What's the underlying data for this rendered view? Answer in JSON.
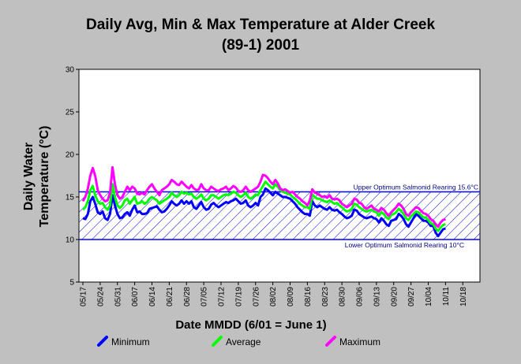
{
  "chart_data": {
    "type": "line",
    "title_line1": "Daily Avg, Min & Max Temperature at Alder Creek",
    "title_line2": "(89-1) 2001",
    "xlabel": "Date MMDD (6/01 = June 1)",
    "ylabel_line1": "Daily Water",
    "ylabel_line2": "Temperature (°C)",
    "ylim": [
      5,
      30
    ],
    "y_ticks": [
      "5",
      "10",
      "15",
      "20",
      "25",
      "30"
    ],
    "x_ticks": [
      "05/17",
      "05/24",
      "05/31",
      "06/07",
      "06/14",
      "06/21",
      "06/28",
      "07/05",
      "07/12",
      "07/19",
      "07/26",
      "08/02",
      "08/09",
      "08/16",
      "08/23",
      "08/30",
      "09/06",
      "09/13",
      "09/20",
      "09/27",
      "10/04",
      "10/11",
      "10/18"
    ],
    "band": {
      "lower": 10,
      "upper": 15.6,
      "upper_label": "Upper Optimum Salmonid Rearing 15.6°C",
      "lower_label": "Lower Optimum Salmonid Rearing 10°C"
    },
    "legend_placement": "bottom",
    "series": [
      {
        "name": "Minimum",
        "color": "#0000ff",
        "values": [
          12.5,
          12.4,
          13.0,
          14.5,
          15.0,
          14.2,
          13.2,
          13.0,
          13.3,
          12.5,
          12.3,
          13.0,
          15.2,
          14.0,
          13.0,
          12.5,
          12.6,
          13.0,
          13.2,
          12.8,
          13.5,
          14.0,
          13.2,
          13.3,
          13.0,
          13.0,
          13.1,
          13.6,
          13.7,
          13.8,
          13.9,
          13.5,
          13.2,
          13.3,
          13.6,
          14.0,
          14.5,
          14.2,
          14.0,
          14.2,
          14.6,
          14.2,
          14.5,
          14.2,
          14.5,
          13.8,
          13.6,
          14.0,
          14.4,
          13.8,
          13.5,
          13.6,
          14.1,
          14.3,
          14.0,
          13.8,
          14.0,
          14.2,
          14.4,
          14.3,
          14.5,
          14.6,
          14.8,
          14.5,
          14.2,
          14.3,
          14.6,
          14.0,
          13.8,
          14.0,
          14.3,
          14.0,
          15.0,
          15.3,
          16.0,
          15.8,
          15.5,
          15.2,
          15.6,
          15.4,
          15.2,
          15.0,
          15.0,
          14.9,
          14.8,
          14.5,
          14.2,
          13.8,
          13.5,
          13.2,
          13.0,
          13.0,
          12.8,
          14.5,
          14.0,
          13.8,
          14.0,
          13.8,
          13.6,
          13.5,
          13.8,
          13.5,
          13.4,
          13.5,
          13.2,
          13.0,
          12.7,
          12.5,
          12.6,
          12.8,
          13.5,
          13.4,
          13.0,
          12.8,
          12.6,
          12.5,
          12.6,
          12.7,
          12.5,
          12.4,
          12.0,
          12.5,
          12.2,
          11.8,
          11.6,
          12.2,
          12.3,
          12.4,
          13.0,
          12.8,
          12.4,
          11.8,
          11.5,
          12.0,
          12.5,
          13.0,
          12.8,
          12.5,
          12.2,
          12.2,
          12.0,
          11.6,
          11.6,
          10.8,
          10.4,
          10.8,
          11.2,
          11.3
        ]
      },
      {
        "name": "Average",
        "color": "#00ff00",
        "values": [
          13.5,
          13.8,
          14.5,
          15.8,
          16.3,
          15.2,
          14.5,
          14.2,
          14.3,
          13.8,
          13.5,
          14.0,
          16.5,
          15.0,
          14.0,
          13.7,
          14.0,
          14.6,
          14.8,
          14.2,
          14.6,
          15.0,
          14.2,
          14.3,
          14.5,
          14.2,
          14.4,
          14.8,
          15.0,
          14.8,
          14.6,
          14.2,
          14.4,
          14.6,
          14.8,
          15.0,
          15.5,
          15.2,
          15.0,
          15.2,
          15.6,
          15.4,
          15.5,
          15.3,
          15.4,
          15.0,
          14.8,
          15.0,
          15.3,
          14.8,
          14.6,
          14.8,
          15.2,
          15.2,
          15.0,
          14.8,
          15.0,
          15.2,
          15.3,
          15.2,
          15.4,
          15.6,
          15.5,
          15.2,
          15.0,
          15.2,
          15.5,
          15.0,
          14.8,
          15.0,
          15.3,
          15.2,
          15.8,
          16.3,
          16.8,
          16.5,
          16.2,
          16.0,
          16.5,
          16.2,
          15.8,
          15.6,
          15.5,
          15.4,
          15.3,
          15.0,
          14.8,
          14.5,
          14.2,
          14.0,
          13.8,
          13.8,
          13.6,
          15.3,
          15.0,
          14.8,
          14.8,
          14.6,
          14.5,
          14.4,
          14.6,
          14.4,
          14.2,
          14.3,
          14.0,
          13.8,
          13.5,
          13.3,
          13.4,
          13.6,
          14.2,
          14.1,
          13.8,
          13.6,
          13.4,
          13.3,
          13.4,
          13.5,
          13.3,
          13.2,
          12.8,
          13.2,
          13.0,
          12.6,
          12.4,
          12.9,
          13.0,
          13.2,
          13.6,
          13.4,
          13.0,
          12.5,
          12.3,
          12.7,
          13.0,
          13.3,
          13.2,
          12.9,
          12.6,
          12.6,
          12.3,
          11.9,
          11.8,
          11.3,
          11.0,
          11.4,
          11.7,
          11.8
        ]
      },
      {
        "name": "Maximum",
        "color": "#ff00ff",
        "values": [
          14.5,
          15.0,
          16.0,
          17.5,
          18.4,
          17.5,
          15.8,
          15.2,
          14.8,
          14.5,
          14.6,
          15.5,
          18.5,
          16.5,
          15.2,
          14.8,
          15.0,
          15.6,
          16.2,
          15.8,
          16.2,
          16.0,
          15.4,
          15.3,
          15.5,
          15.3,
          15.8,
          16.2,
          16.5,
          16.0,
          15.6,
          15.2,
          15.8,
          16.0,
          16.2,
          16.5,
          17.0,
          16.8,
          16.5,
          16.4,
          16.8,
          16.5,
          16.2,
          16.0,
          16.4,
          16.0,
          15.8,
          15.9,
          16.5,
          16.0,
          15.8,
          15.8,
          16.2,
          16.0,
          15.8,
          15.7,
          15.9,
          16.0,
          16.2,
          15.8,
          16.0,
          16.3,
          16.1,
          15.7,
          15.6,
          15.8,
          16.2,
          15.8,
          15.6,
          15.8,
          16.0,
          16.2,
          16.8,
          17.6,
          17.5,
          17.2,
          16.8,
          16.5,
          17.0,
          16.6,
          16.0,
          15.8,
          15.9,
          15.7,
          15.5,
          15.6,
          15.3,
          15.0,
          14.8,
          14.5,
          14.3,
          14.0,
          14.6,
          15.9,
          15.5,
          15.4,
          15.2,
          15.0,
          15.1,
          14.9,
          15.2,
          14.8,
          14.7,
          14.8,
          14.6,
          14.2,
          14.0,
          13.8,
          14.0,
          14.2,
          14.8,
          14.7,
          14.3,
          14.2,
          13.8,
          13.6,
          13.8,
          14.0,
          13.6,
          13.5,
          13.3,
          13.7,
          13.5,
          13.1,
          12.8,
          13.2,
          13.5,
          13.8,
          14.2,
          14.0,
          13.6,
          13.0,
          12.8,
          13.2,
          13.5,
          13.8,
          13.7,
          13.4,
          13.1,
          13.0,
          12.8,
          12.4,
          12.2,
          11.8,
          11.5,
          12.0,
          12.3,
          12.4
        ]
      }
    ]
  }
}
